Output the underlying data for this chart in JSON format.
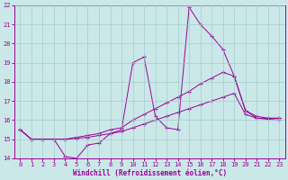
{
  "xlabel": "Windchill (Refroidissement éolien,°C)",
  "bg_color": "#cbe8e8",
  "line_color": "#990099",
  "grid_color": "#a0cccc",
  "xlim": [
    -0.5,
    23.5
  ],
  "ylim": [
    14,
    22
  ],
  "xticks": [
    0,
    1,
    2,
    3,
    4,
    5,
    6,
    7,
    8,
    9,
    10,
    11,
    12,
    13,
    14,
    15,
    16,
    17,
    18,
    19,
    20,
    21,
    22,
    23
  ],
  "yticks": [
    14,
    15,
    16,
    17,
    18,
    19,
    20,
    21,
    22
  ],
  "series": [
    {
      "x": [
        0,
        1,
        2,
        3,
        4,
        5,
        6,
        7,
        8,
        9,
        10,
        11,
        12,
        13,
        14,
        15,
        16,
        17,
        18,
        19,
        20,
        21,
        22,
        23
      ],
      "y": [
        15.5,
        15.0,
        15.0,
        15.0,
        14.1,
        14.0,
        14.7,
        14.8,
        15.3,
        15.5,
        19.0,
        19.3,
        16.2,
        15.6,
        15.5,
        21.9,
        21.0,
        20.4,
        19.7,
        18.3,
        16.5,
        16.1,
        16.1,
        16.1
      ]
    },
    {
      "x": [
        0,
        1,
        2,
        3,
        4,
        5,
        6,
        7,
        8,
        9,
        10,
        11,
        12,
        13,
        14,
        15,
        16,
        17,
        18,
        19,
        20,
        21,
        22,
        23
      ],
      "y": [
        15.5,
        15.0,
        15.0,
        15.0,
        15.0,
        15.1,
        15.2,
        15.3,
        15.5,
        15.6,
        16.0,
        16.3,
        16.6,
        16.9,
        17.2,
        17.5,
        17.9,
        18.2,
        18.5,
        18.3,
        16.5,
        16.2,
        16.1,
        16.1
      ]
    },
    {
      "x": [
        0,
        1,
        2,
        3,
        4,
        5,
        6,
        7,
        8,
        9,
        10,
        11,
        12,
        13,
        14,
        15,
        16,
        17,
        18,
        19,
        20,
        21,
        22,
        23
      ],
      "y": [
        15.5,
        15.0,
        15.0,
        15.0,
        15.0,
        15.05,
        15.1,
        15.2,
        15.3,
        15.4,
        15.6,
        15.8,
        16.0,
        16.2,
        16.4,
        16.6,
        16.8,
        17.0,
        17.2,
        17.4,
        16.3,
        16.1,
        16.05,
        16.0
      ]
    }
  ]
}
